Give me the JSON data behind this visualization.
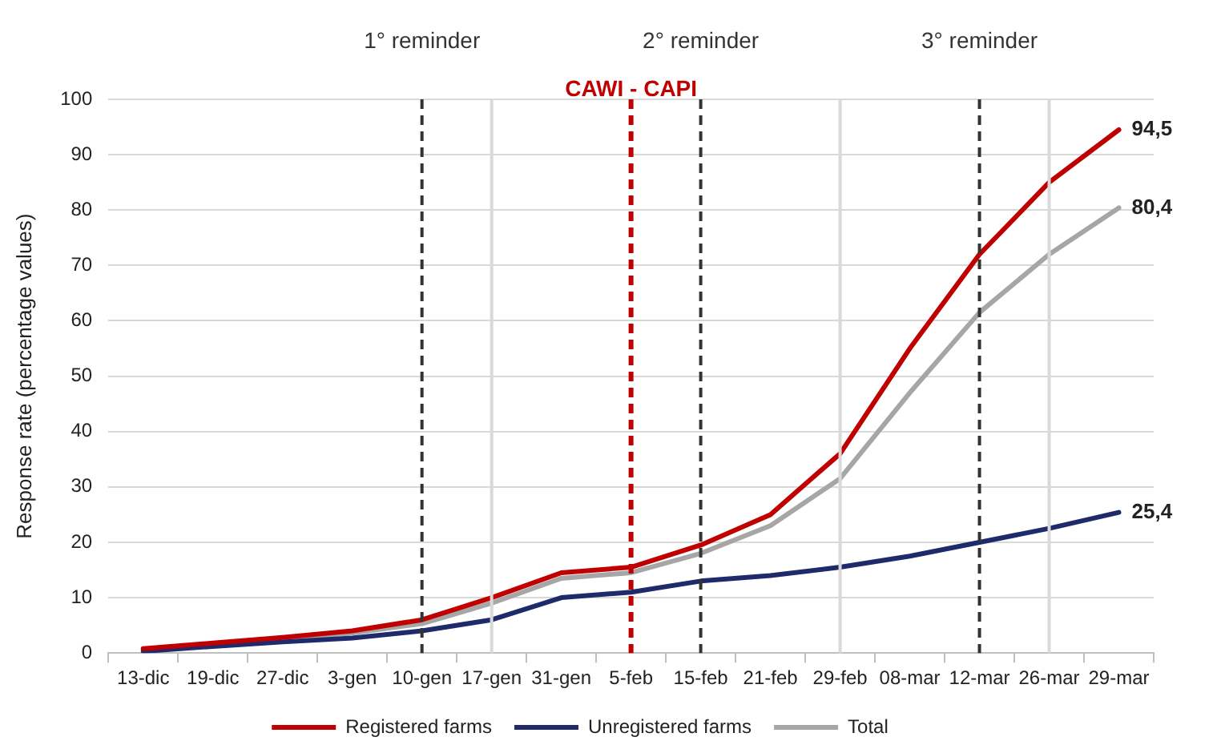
{
  "chart_data": {
    "type": "line",
    "ylabel": "Response rate (percentage values)",
    "categories": [
      "13-dic",
      "19-dic",
      "27-dic",
      "3-gen",
      "10-gen",
      "17-gen",
      "31-gen",
      "5-feb",
      "15-feb",
      "21-feb",
      "29-feb",
      "08-mar",
      "12-mar",
      "26-mar",
      "29-mar"
    ],
    "series": [
      {
        "name": "Registered farms",
        "color": "#c00000",
        "values": [
          0.8,
          1.8,
          2.8,
          4,
          6,
          10,
          14.5,
          15.5,
          19.5,
          25,
          36,
          55,
          72,
          85,
          94.5
        ],
        "value_labels": [
          null,
          null,
          null,
          null,
          null,
          null,
          null,
          null,
          null,
          null,
          null,
          null,
          null,
          null,
          "94,5"
        ]
      },
      {
        "name": "Unregistered farms",
        "color": "#1f2a6b",
        "values": [
          0.3,
          1.2,
          2,
          2.7,
          4,
          6,
          10,
          11,
          13,
          14,
          15.5,
          17.5,
          20,
          22.5,
          25.4
        ],
        "value_labels": [
          null,
          null,
          null,
          null,
          null,
          null,
          null,
          null,
          null,
          null,
          null,
          null,
          null,
          null,
          "25,4"
        ]
      },
      {
        "name": "Total",
        "color": "#a6a6a6",
        "values": [
          0.6,
          1.6,
          2.6,
          3.6,
          5.3,
          9,
          13.5,
          14.5,
          18,
          23,
          31.5,
          47,
          61.5,
          72,
          80.4
        ],
        "value_labels": [
          null,
          null,
          null,
          null,
          null,
          null,
          null,
          null,
          null,
          null,
          null,
          null,
          null,
          null,
          "80,4"
        ]
      }
    ],
    "ylim": [
      0,
      100
    ],
    "yticks": [
      0,
      10,
      20,
      30,
      40,
      50,
      60,
      70,
      80,
      90,
      100
    ],
    "grid": "y",
    "legend": "bottom",
    "marker": "none",
    "line_style": "solid",
    "ref_lines": [
      {
        "axis": "x",
        "value": "17-gen",
        "label": null,
        "color": "#d9d9d9",
        "line_style": "solid"
      },
      {
        "axis": "x",
        "value": "29-feb",
        "label": null,
        "color": "#d9d9d9",
        "line_style": "solid"
      },
      {
        "axis": "x",
        "value": "26-mar",
        "label": null,
        "color": "#d9d9d9",
        "line_style": "solid"
      },
      {
        "axis": "x",
        "value": "10-gen",
        "label": "1° reminder",
        "color": "#333333",
        "line_style": "dashed"
      },
      {
        "axis": "x",
        "value": "15-feb",
        "label": "2° reminder",
        "color": "#333333",
        "line_style": "dashed"
      },
      {
        "axis": "x",
        "value": "12-mar",
        "label": "3° reminder",
        "color": "#333333",
        "line_style": "dashed"
      },
      {
        "axis": "x",
        "value": "5-feb",
        "label": "CAWI - CAPI",
        "color": "#c00000",
        "line_style": "dashed"
      }
    ]
  }
}
